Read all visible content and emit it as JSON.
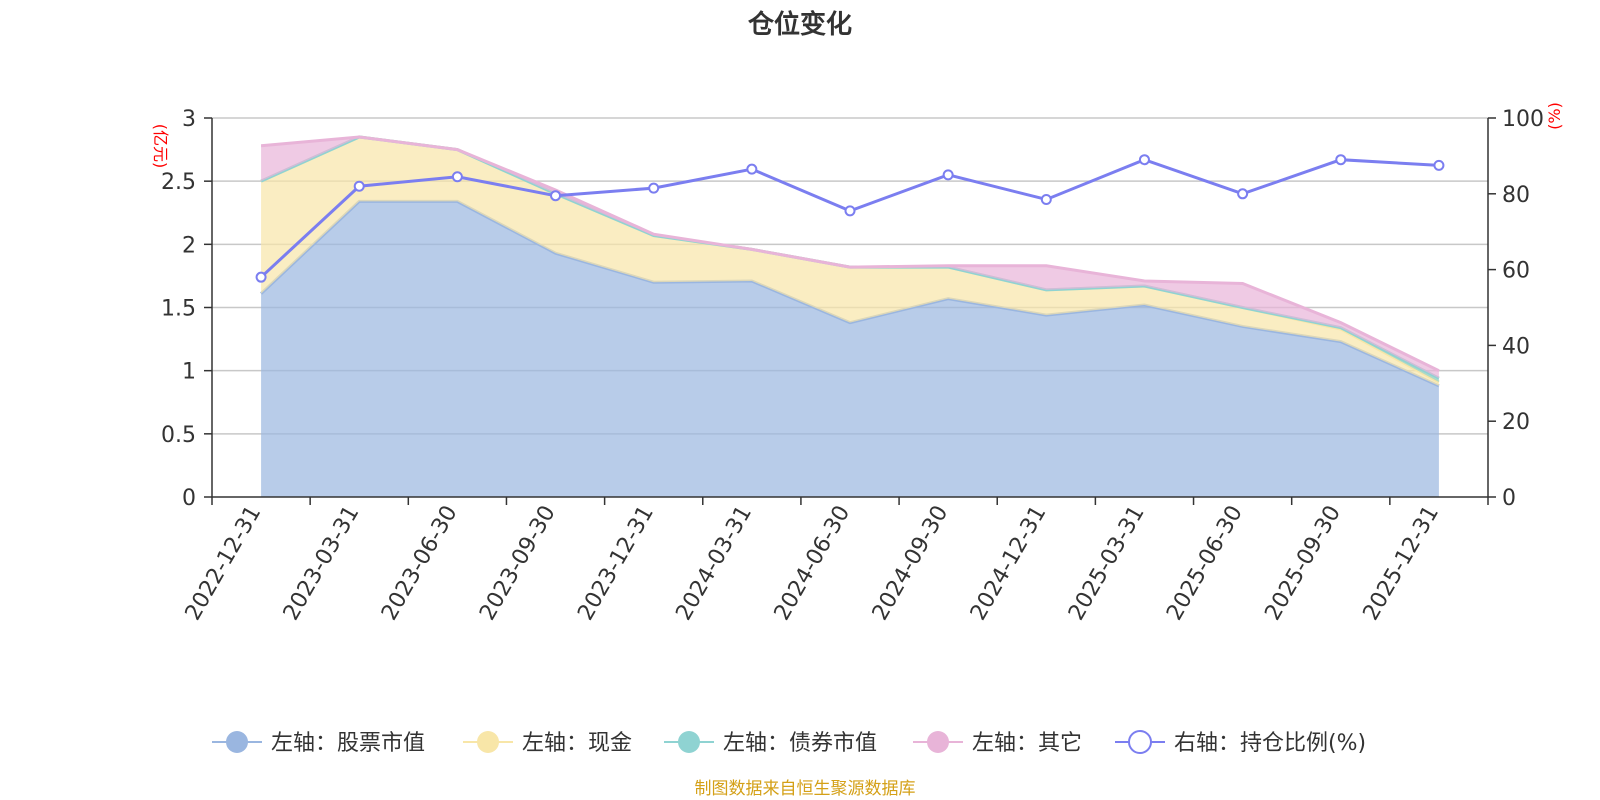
{
  "chart_data": {
    "type": "area",
    "title": "仓位变化",
    "left_axis_label": "(亿元)",
    "right_axis_label": "(%)",
    "categories": [
      "2022-12-31",
      "2023-03-31",
      "2023-06-30",
      "2023-09-30",
      "2023-12-31",
      "2024-03-31",
      "2024-06-30",
      "2024-09-30",
      "2024-12-31",
      "2025-03-31",
      "2025-06-30",
      "2025-09-30",
      "2025-12-31"
    ],
    "left_ylim": [
      0,
      3
    ],
    "left_ticks": [
      0,
      0.5,
      1,
      1.5,
      2,
      2.5,
      3
    ],
    "right_ylim": [
      0,
      100
    ],
    "right_ticks": [
      0,
      20,
      40,
      60,
      80,
      100
    ],
    "series": [
      {
        "name": "左轴：股票市值",
        "axis": "left",
        "color": "#9ab6e0",
        "values": [
          1.61,
          2.34,
          2.34,
          1.93,
          1.7,
          1.71,
          1.38,
          1.57,
          1.44,
          1.52,
          1.35,
          1.23,
          0.88
        ]
      },
      {
        "name": "左轴：现金",
        "axis": "left",
        "color": "#f8e6a8",
        "values": [
          0.89,
          0.51,
          0.41,
          0.47,
          0.37,
          0.25,
          0.44,
          0.25,
          0.2,
          0.15,
          0.15,
          0.1,
          0.03
        ]
      },
      {
        "name": "左轴：债券市值",
        "axis": "left",
        "color": "#8fd3d2",
        "values": [
          0,
          0,
          0,
          0,
          0,
          0,
          0,
          0,
          0,
          0,
          0,
          0.01,
          0.03
        ]
      },
      {
        "name": "左轴：其它",
        "axis": "left",
        "color": "#e8b4d8",
        "values": [
          0.28,
          0,
          0,
          0.03,
          0.01,
          0,
          0,
          0.01,
          0.19,
          0.04,
          0.19,
          0.04,
          0.06
        ]
      },
      {
        "name": "右轴：持仓比例(%)",
        "axis": "right",
        "color": "#7b7ef0",
        "values": [
          58,
          82,
          84.5,
          79.5,
          81.5,
          86.5,
          75.5,
          85,
          78.5,
          89,
          80,
          89,
          87.5
        ]
      }
    ],
    "source_note": "制图数据来自恒生聚源数据库"
  }
}
